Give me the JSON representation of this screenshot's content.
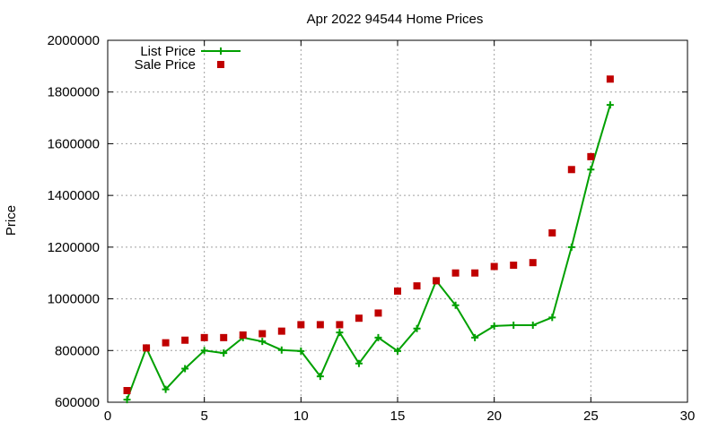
{
  "chart_data": {
    "type": "line",
    "title": "Apr 2022 94544 Home Prices",
    "ylabel": "Price",
    "xlabel": "",
    "xlim": [
      0,
      30
    ],
    "ylim": [
      600000,
      2000000
    ],
    "xticks": [
      0,
      5,
      10,
      15,
      20,
      25,
      30
    ],
    "yticks": [
      600000,
      800000,
      1000000,
      1200000,
      1400000,
      1600000,
      1800000,
      2000000
    ],
    "grid": true,
    "legend_position": "top-left",
    "series": [
      {
        "name": "List Price",
        "style": "line-with-plus-markers",
        "color": "#00a000",
        "x": [
          1,
          2,
          3,
          4,
          5,
          6,
          7,
          8,
          9,
          10,
          11,
          12,
          13,
          14,
          15,
          16,
          17,
          18,
          19,
          20,
          21,
          22,
          23,
          24,
          25,
          26
        ],
        "y": [
          610000,
          810000,
          650000,
          730000,
          800000,
          790000,
          850000,
          835000,
          802000,
          798000,
          700000,
          870000,
          750000,
          850000,
          798000,
          885000,
          1070000,
          975000,
          850000,
          895000,
          898000,
          898000,
          928000,
          1200000,
          1500000,
          1750000
        ]
      },
      {
        "name": "Sale Price",
        "style": "square-markers",
        "color": "#c00000",
        "x": [
          1,
          2,
          3,
          4,
          5,
          6,
          7,
          8,
          9,
          10,
          11,
          12,
          13,
          14,
          15,
          16,
          17,
          18,
          19,
          20,
          21,
          22,
          23,
          24,
          25,
          26
        ],
        "y": [
          645000,
          810000,
          830000,
          840000,
          850000,
          850000,
          860000,
          865000,
          875000,
          900000,
          900000,
          900000,
          925000,
          945000,
          1030000,
          1050000,
          1070000,
          1100000,
          1100000,
          1125000,
          1130000,
          1140000,
          1255000,
          1500000,
          1550000,
          1850000
        ]
      }
    ]
  }
}
